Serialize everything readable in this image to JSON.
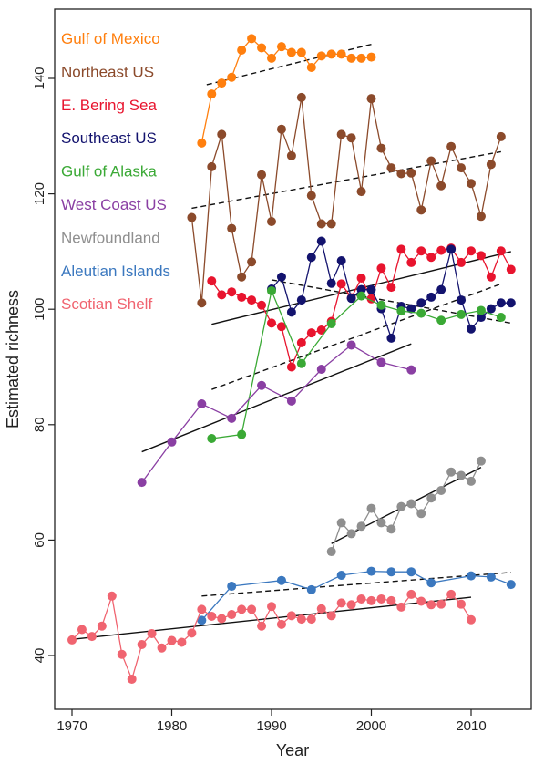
{
  "chart_data": {
    "type": "line",
    "xlabel": "Year",
    "ylabel": "Estimated richness",
    "xlim": [
      1969,
      2016
    ],
    "ylim": [
      34,
      150
    ],
    "x_ticks": [
      1970,
      1980,
      1990,
      2000,
      2010
    ],
    "y_ticks": [
      40,
      60,
      80,
      100,
      120,
      140
    ],
    "grid": false,
    "legend_position": "top-left",
    "series": [
      {
        "name": "Gulf of Mexico",
        "color": "#ff7f0e",
        "x": [
          1983,
          1984,
          1985,
          1986,
          1987,
          1988,
          1989,
          1990,
          1991,
          1992,
          1993,
          1994,
          1995,
          1996,
          1997,
          1998,
          1999,
          2000
        ],
        "y": [
          128.8,
          137.3,
          139.2,
          140.2,
          144.9,
          146.9,
          145.3,
          143.5,
          145.5,
          144.5,
          144.5,
          141.9,
          143.9,
          144.2,
          144.2,
          143.5,
          143.5,
          143.7
        ],
        "trend": {
          "style": "dashed",
          "x": [
            1983.5,
            2000
          ],
          "y": [
            138.9,
            145.9
          ]
        }
      },
      {
        "name": "Northeast US",
        "color": "#8b4a2b",
        "x": [
          1982,
          1983,
          1984,
          1985,
          1986,
          1987,
          1988,
          1989,
          1990,
          1991,
          1992,
          1993,
          1994,
          1995,
          1996,
          1997,
          1998,
          1999,
          2000,
          2001,
          2002,
          2003,
          2004,
          2005,
          2006,
          2007,
          2008,
          2009,
          2010,
          2011,
          2012,
          2013
        ],
        "y": [
          115.9,
          101.1,
          124.7,
          130.3,
          114.0,
          105.6,
          108.2,
          123.3,
          115.2,
          131.2,
          126.6,
          136.7,
          119.7,
          114.8,
          114.8,
          130.3,
          129.7,
          120.4,
          136.5,
          127.9,
          124.5,
          123.5,
          123.6,
          117.2,
          125.7,
          121.4,
          128.2,
          124.5,
          121.8,
          116.1,
          125.1,
          129.9
        ],
        "trend": {
          "style": "dashed",
          "x": [
            1982,
            2013
          ],
          "y": [
            117.5,
            127.3
          ]
        }
      },
      {
        "name": "E. Bering Sea",
        "color": "#e8142e",
        "x": [
          1984,
          1985,
          1986,
          1987,
          1988,
          1989,
          1990,
          1991,
          1992,
          1993,
          1994,
          1995,
          1996,
          1997,
          1998,
          1999,
          2000,
          2001,
          2002,
          2003,
          2004,
          2005,
          2006,
          2007,
          2008,
          2009,
          2010,
          2011,
          2012,
          2013,
          2014
        ],
        "y": [
          104.9,
          102.5,
          103.0,
          102.1,
          101.6,
          100.7,
          97.6,
          97.0,
          90.0,
          94.2,
          95.9,
          96.4,
          97.9,
          104.4,
          102.0,
          105.4,
          101.8,
          107.1,
          103.8,
          110.4,
          108.1,
          110.1,
          109.0,
          110.2,
          110.6,
          108.1,
          110.1,
          109.3,
          105.6,
          110.1,
          106.9
        ],
        "trend": {
          "style": "solid",
          "x": [
            1984,
            2014
          ],
          "y": [
            97.4,
            110.0
          ]
        }
      },
      {
        "name": "Southeast US",
        "color": "#13136e",
        "x": [
          1990,
          1991,
          1992,
          1993,
          1994,
          1995,
          1996,
          1997,
          1998,
          1999,
          2000,
          2001,
          2002,
          2003,
          2004,
          2005,
          2006,
          2007,
          2008,
          2009,
          2010,
          2011,
          2012,
          2013,
          2014
        ],
        "y": [
          103.5,
          105.6,
          99.5,
          101.6,
          109.0,
          111.8,
          104.5,
          108.4,
          101.9,
          103.4,
          103.4,
          100.1,
          95.0,
          100.5,
          100.1,
          101.1,
          102.1,
          103.4,
          110.4,
          101.6,
          96.6,
          98.6,
          100.1,
          101.1,
          101.1
        ],
        "trend": {
          "style": "dashed",
          "x": [
            1990,
            2014
          ],
          "y": [
            105.1,
            97.6
          ]
        }
      },
      {
        "name": "Gulf of Alaska",
        "color": "#3aa935",
        "x": [
          1984,
          1987,
          1990,
          1993,
          1996,
          1999,
          2001,
          2003,
          2005,
          2007,
          2009,
          2011,
          2013
        ],
        "y": [
          77.6,
          78.3,
          103.2,
          90.6,
          97.5,
          102.3,
          100.7,
          99.7,
          99.3,
          98.1,
          99.1,
          99.8,
          98.6
        ],
        "trend": {
          "style": "dashed",
          "x": [
            1984,
            2013
          ],
          "y": [
            86.1,
            104.4
          ]
        }
      },
      {
        "name": "West Coast US",
        "color": "#8a3fa3",
        "x": [
          1977,
          1980,
          1983,
          1986,
          1989,
          1992,
          1995,
          1998,
          2001,
          2004
        ],
        "y": [
          70.0,
          77.0,
          83.6,
          81.1,
          86.8,
          84.1,
          89.6,
          93.8,
          90.8,
          89.5
        ],
        "trend": {
          "style": "solid",
          "x": [
            1977,
            2004
          ],
          "y": [
            75.3,
            94.0
          ]
        }
      },
      {
        "name": "Newfoundland",
        "color": "#8f8f8f",
        "x": [
          1996,
          1997,
          1998,
          1999,
          2000,
          2001,
          2002,
          2003,
          2004,
          2005,
          2006,
          2007,
          2008,
          2009,
          2010,
          2011
        ],
        "y": [
          58.0,
          63.0,
          61.1,
          62.4,
          65.5,
          63.0,
          61.9,
          65.8,
          66.3,
          64.6,
          67.3,
          68.6,
          71.8,
          71.2,
          70.2,
          73.7
        ],
        "trend": {
          "style": "solid",
          "x": [
            1996,
            2011
          ],
          "y": [
            59.4,
            72.6
          ]
        }
      },
      {
        "name": "Aleutian Islands",
        "color": "#3b78bf",
        "x": [
          1983,
          1986,
          1991,
          1994,
          1997,
          2000,
          2002,
          2004,
          2006,
          2010,
          2012,
          2014
        ],
        "y": [
          46.1,
          52.0,
          53.0,
          51.4,
          53.9,
          54.6,
          54.5,
          54.5,
          52.6,
          53.8,
          53.6,
          52.3
        ],
        "trend": {
          "style": "dashed",
          "x": [
            1983,
            2014
          ],
          "y": [
            50.3,
            54.4
          ]
        }
      },
      {
        "name": "Scotian Shelf",
        "color": "#f06470",
        "x": [
          1970,
          1971,
          1972,
          1973,
          1974,
          1975,
          1976,
          1977,
          1978,
          1979,
          1980,
          1981,
          1982,
          1983,
          1984,
          1985,
          1986,
          1987,
          1988,
          1989,
          1990,
          1991,
          1992,
          1993,
          1994,
          1995,
          1996,
          1997,
          1998,
          1999,
          2000,
          2001,
          2002,
          2003,
          2004,
          2005,
          2006,
          2007,
          2008,
          2009,
          2010
        ],
        "y": [
          42.7,
          44.5,
          43.3,
          45.1,
          50.3,
          40.2,
          35.9,
          41.9,
          43.8,
          41.3,
          42.6,
          42.3,
          43.9,
          48.0,
          46.8,
          46.4,
          47.1,
          48.0,
          48.0,
          45.1,
          48.5,
          45.4,
          46.9,
          46.3,
          46.3,
          48.1,
          46.9,
          49.1,
          48.8,
          49.8,
          49.5,
          49.8,
          49.5,
          48.4,
          50.6,
          49.4,
          48.8,
          48.9,
          50.6,
          48.9,
          46.2
        ],
        "trend": {
          "style": "solid",
          "x": [
            1970,
            2010
          ],
          "y": [
            42.8,
            50.1
          ]
        }
      }
    ]
  }
}
